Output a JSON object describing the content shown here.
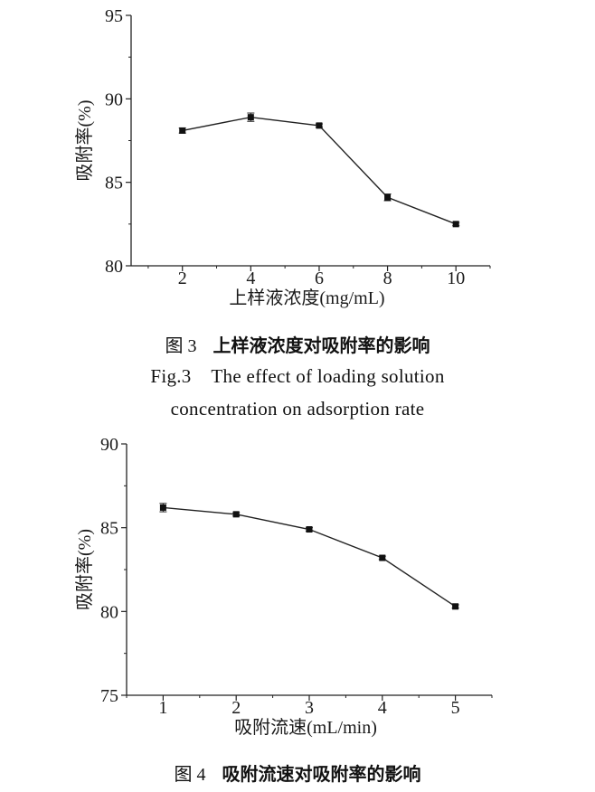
{
  "chart_data": [
    {
      "type": "line",
      "xlabel": "上样液浓度(mg/mL)",
      "ylabel": "吸附率(%)",
      "x": [
        2,
        4,
        6,
        8,
        10
      ],
      "y": [
        88.1,
        88.9,
        88.4,
        84.1,
        82.5
      ],
      "yerr": [
        0.15,
        0.25,
        0.1,
        0.2,
        0.1
      ],
      "xticks": [
        "2",
        "4",
        "6",
        "8",
        "10"
      ],
      "yticks": [
        "80",
        "85",
        "90",
        "95"
      ],
      "ylim": [
        80,
        95
      ],
      "xlim": [
        0.5,
        11
      ]
    },
    {
      "type": "line",
      "xlabel": "吸附流速(mL/min)",
      "ylabel": "吸附率(%)",
      "x": [
        1,
        2,
        3,
        4,
        5
      ],
      "y": [
        86.2,
        85.8,
        84.9,
        83.2,
        80.3
      ],
      "yerr": [
        0.25,
        0.1,
        0.1,
        0.1,
        0.1
      ],
      "xticks": [
        "1",
        "2",
        "3",
        "4",
        "5"
      ],
      "yticks": [
        "75",
        "80",
        "85",
        "90"
      ],
      "ylim": [
        75,
        90
      ],
      "xlim": [
        0.5,
        5.5
      ]
    }
  ],
  "captions": {
    "fig3_num": "图 3",
    "fig3_title": "上样液浓度对吸附率的影响",
    "fig3_en_line1": "Fig.3    The effect of loading solution",
    "fig3_en_line2": "concentration on adsorption rate",
    "fig4_num": "图 4",
    "fig4_title": "吸附流速对吸附率的影响"
  }
}
